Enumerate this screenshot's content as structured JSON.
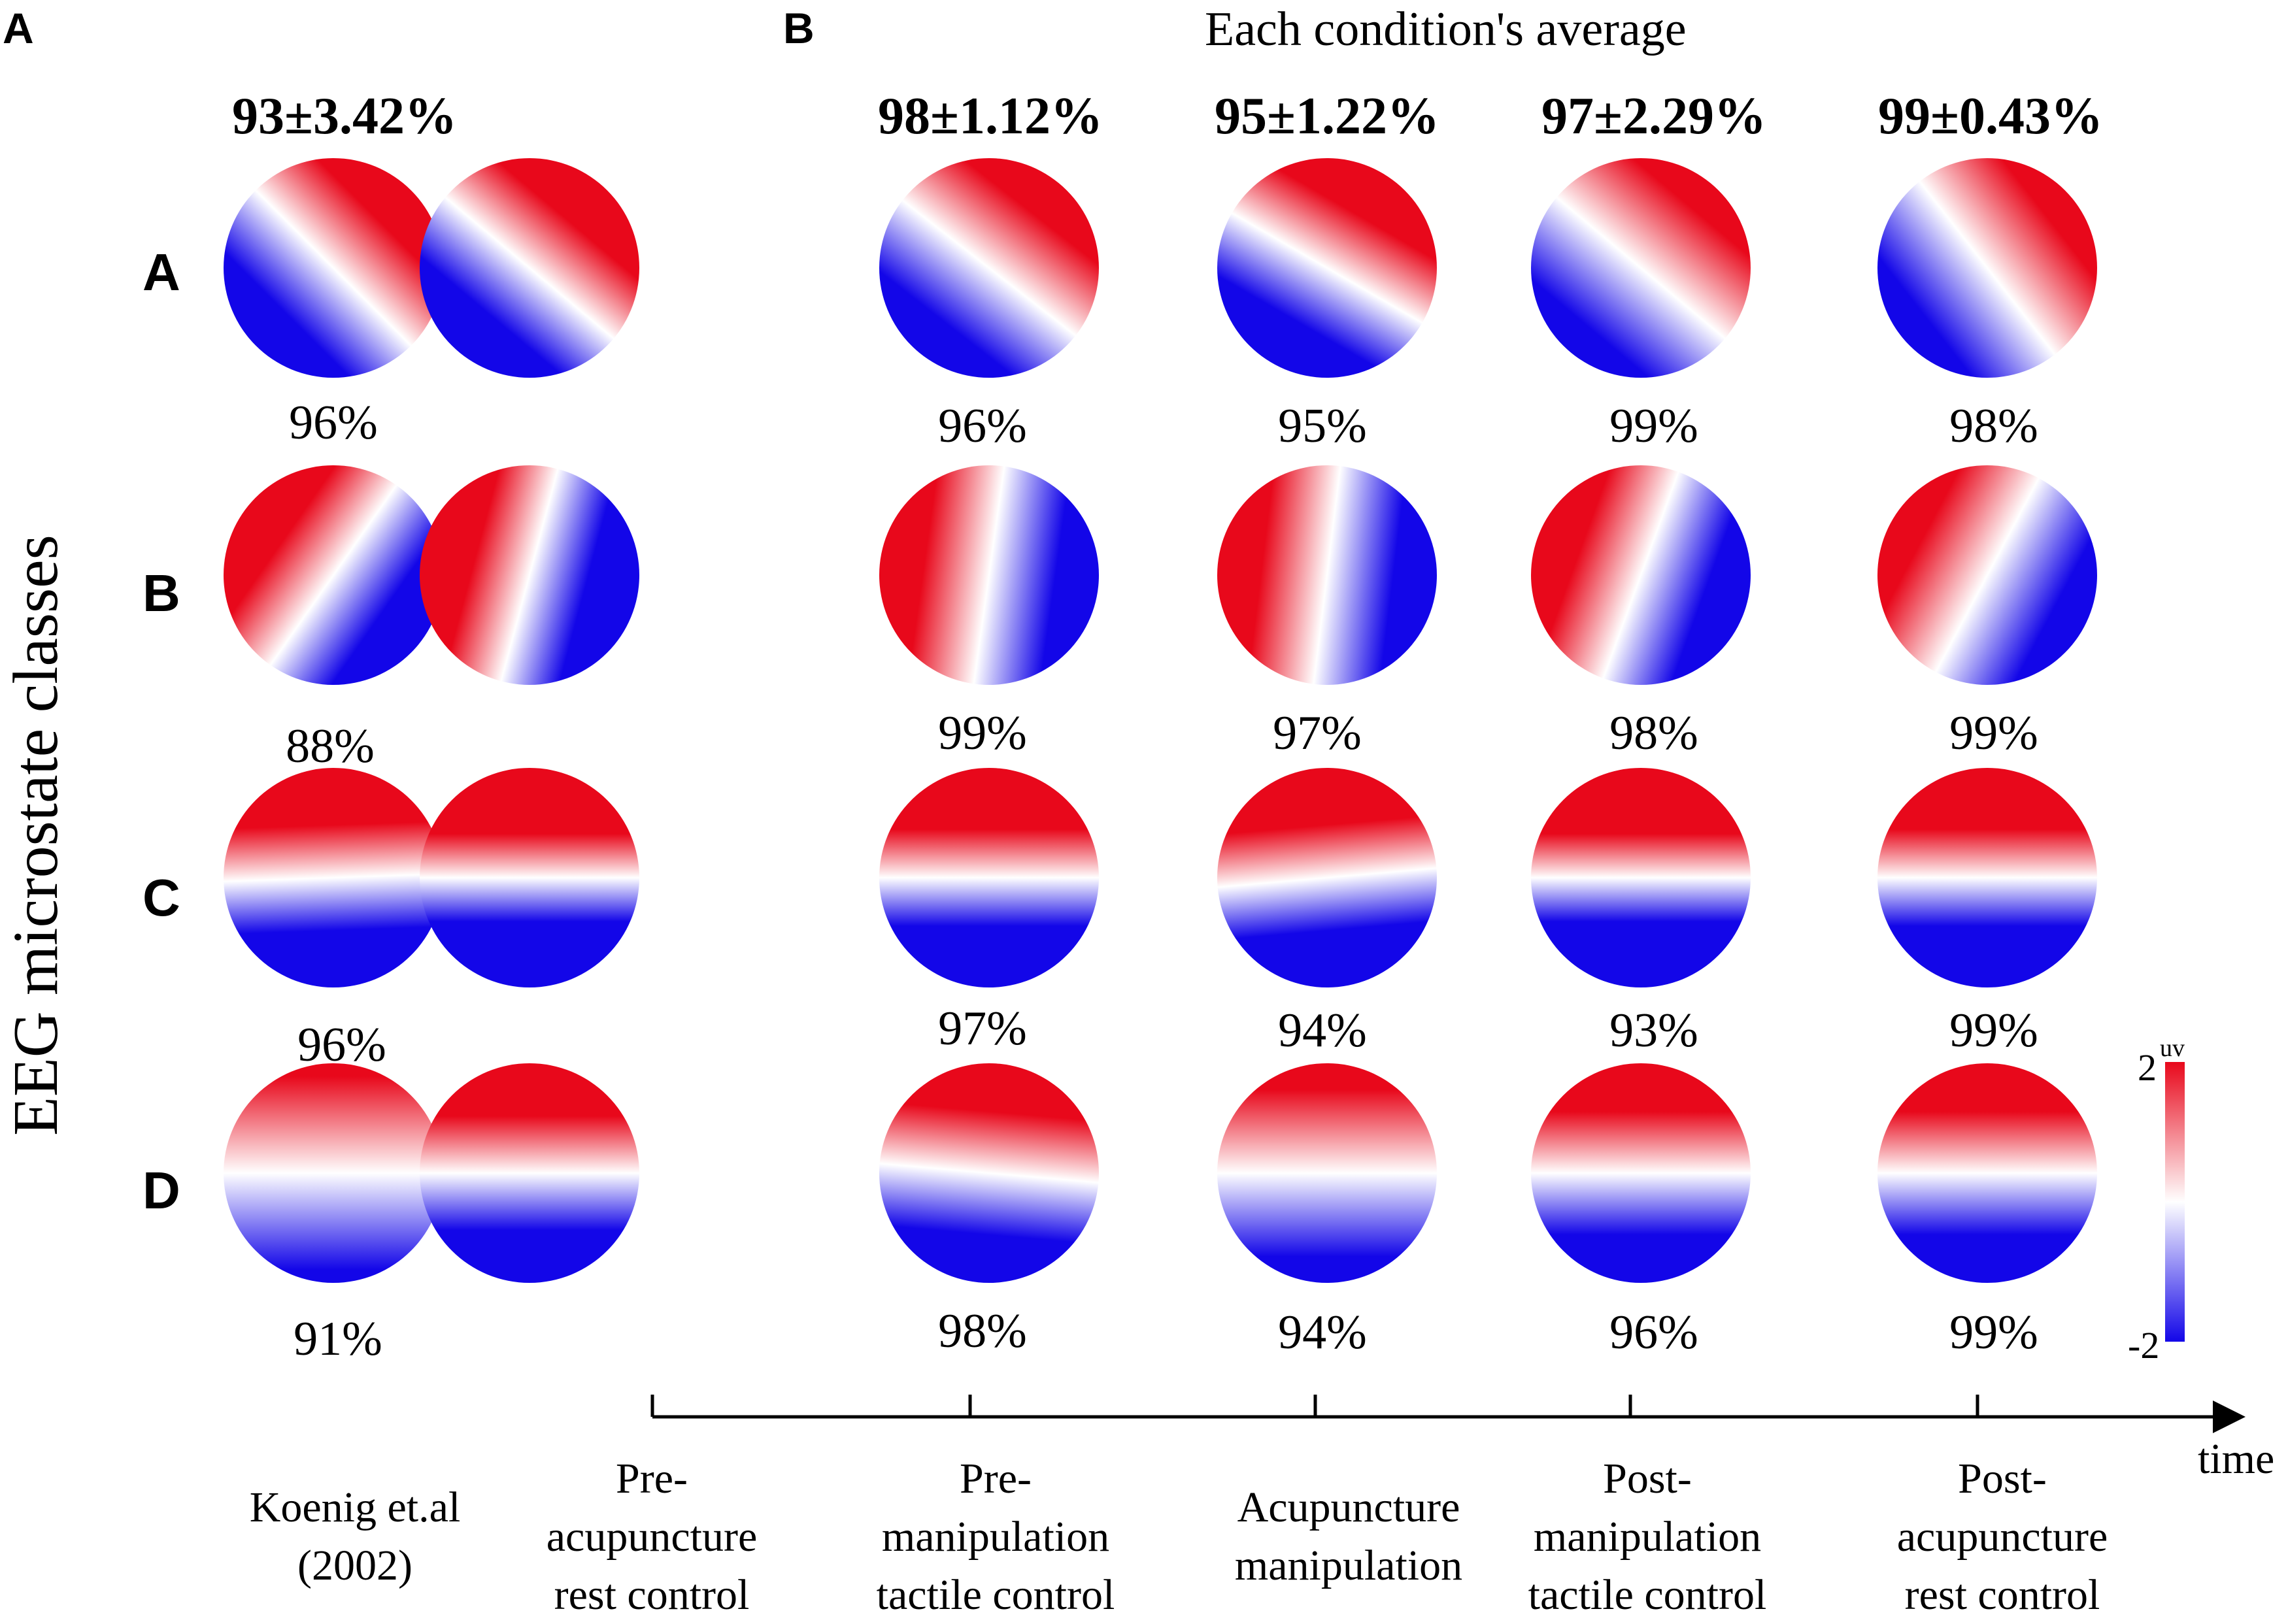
{
  "panels": {
    "a": "A",
    "b": "B"
  },
  "header": "Each condition's average",
  "y_axis_label": "EEG microstate classes",
  "accuracies": [
    "93±3.42%",
    "98±1.12%",
    "95±1.22%",
    "97±2.29%",
    "99±0.43%"
  ],
  "row_labels": [
    "A",
    "B",
    "C",
    "D"
  ],
  "similarity": {
    "A": [
      "96%",
      "96%",
      "95%",
      "99%",
      "98%"
    ],
    "B": [
      "88%",
      "99%",
      "97%",
      "98%",
      "99%"
    ],
    "C": [
      "96%",
      "97%",
      "94%",
      "93%",
      "99%"
    ],
    "D": [
      "91%",
      "98%",
      "94%",
      "96%",
      "99%"
    ]
  },
  "conditions": [
    [
      "Koenig et.al",
      "(2002)"
    ],
    [
      "Pre-",
      "acupuncture",
      "rest control"
    ],
    [
      "Pre-",
      "manipulation",
      "tactile control"
    ],
    [
      "Acupuncture",
      "manipulation"
    ],
    [
      "Post-",
      "manipulation",
      "tactile control"
    ],
    [
      "Post-",
      "acupuncture",
      "rest control"
    ]
  ],
  "time_label": "time",
  "colorbar": {
    "max_label": "2",
    "min_label": "-2",
    "unit": "uv",
    "colors": [
      "#e8081b",
      "#ffffff",
      "#1306e8"
    ]
  },
  "maps": {
    "A": [
      [
        45,
        0.75
      ],
      [
        40,
        0.7
      ],
      [
        38,
        0.8
      ],
      [
        30,
        0.7
      ],
      [
        40,
        0.9
      ],
      [
        52,
        0.9
      ]
    ],
    "B": [
      [
        -55,
        0.7
      ],
      [
        -75,
        0.65
      ],
      [
        -82,
        0.75
      ],
      [
        -83,
        0.75
      ],
      [
        -70,
        0.75
      ],
      [
        -62,
        0.85
      ]
    ],
    "C": [
      [
        -2,
        0.6
      ],
      [
        0,
        0.5
      ],
      [
        0,
        0.55
      ],
      [
        -5,
        0.6
      ],
      [
        0,
        0.5
      ],
      [
        0,
        0.55
      ]
    ],
    "D": [
      [
        0,
        1.1
      ],
      [
        0,
        0.65
      ],
      [
        5,
        0.7
      ],
      [
        0,
        0.95
      ],
      [
        0,
        0.7
      ],
      [
        0,
        0.7
      ]
    ]
  }
}
